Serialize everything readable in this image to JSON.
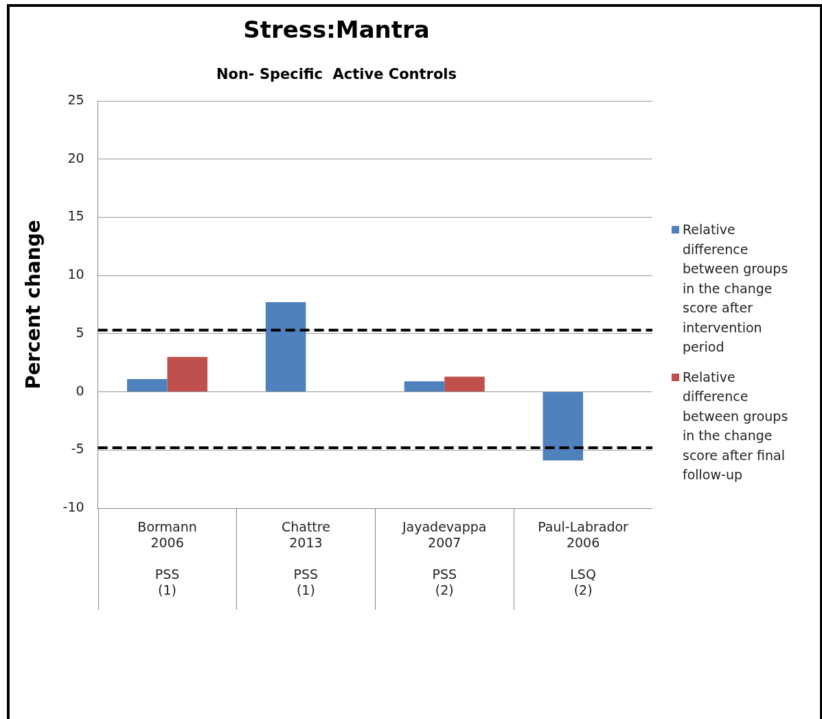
{
  "chart_data": {
    "type": "bar",
    "title": "Stress:Mantra",
    "subtitle": "Non- Specific  Active Controls",
    "ylabel": "Percent change",
    "categories": [
      "Bormann\n2006\n\nPSS\n(1)",
      "Chattre\n2013\n\nPSS\n(1)",
      "Jayadevappa\n2007\n\nPSS\n(2)",
      "Paul-Labrador\n2006\n\nLSQ\n(2)"
    ],
    "series": [
      {
        "name": "Relative difference between groups in the change score after intervention period",
        "color": "#4f81bd",
        "values": [
          1.1,
          7.7,
          0.9,
          -5.9
        ]
      },
      {
        "name": "Relative difference between groups in the change score after final follow-up",
        "color": "#c0504d",
        "values": [
          3.0,
          null,
          1.3,
          null
        ]
      }
    ],
    "ylim": [
      -10,
      25
    ],
    "yticks": [
      -10,
      -5,
      0,
      5,
      10,
      15,
      20,
      25
    ],
    "grid": "y",
    "legend": "right",
    "ref_lines": [
      {
        "axis": "y",
        "value": 5.3,
        "color": "#000000",
        "line_style": "dashed"
      },
      {
        "axis": "y",
        "value": -4.8,
        "color": "#000000",
        "line_style": "dashed"
      }
    ]
  }
}
